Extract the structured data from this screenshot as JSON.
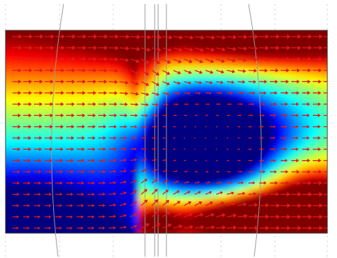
{
  "figure": {
    "kind": "vector-field-over-scalar-colormap",
    "colormap": "jet",
    "arrow_color": "#e0191c",
    "background": "#ffffff",
    "guide_line_color": "#9a9a9a",
    "dotted_grid_color": "#c8c8c8",
    "grid": {
      "columns": 30,
      "rows": 18
    },
    "text": []
  }
}
